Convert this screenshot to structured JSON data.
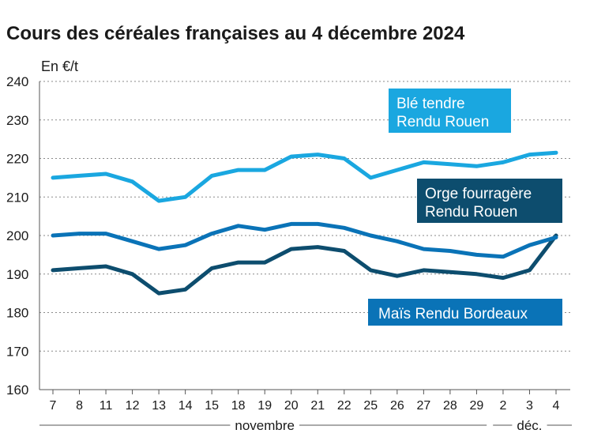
{
  "chart_data": {
    "type": "line",
    "title": "Cours des céréales françaises au 4 décembre 2024",
    "ylabel": "En €/t",
    "xlabel": "",
    "ylim": [
      160,
      240
    ],
    "yticks": [
      160,
      170,
      180,
      190,
      200,
      210,
      220,
      230,
      240
    ],
    "grid": true,
    "categories": [
      "7",
      "8",
      "11",
      "12",
      "13",
      "14",
      "15",
      "18",
      "19",
      "20",
      "21",
      "22",
      "25",
      "26",
      "27",
      "28",
      "29",
      "2",
      "3",
      "4"
    ],
    "periods": [
      {
        "label": "novembre",
        "from": 0,
        "to": 16
      },
      {
        "label": "déc.",
        "from": 17,
        "to": 19
      }
    ],
    "series": [
      {
        "name": "Blé tendre Rendu Rouen",
        "label_lines": [
          "Blé tendre",
          "Rendu Rouen"
        ],
        "color": "#1aa7e0",
        "values": [
          215,
          215.5,
          216,
          214,
          209,
          210,
          215.5,
          217,
          217,
          220.5,
          221,
          220,
          215,
          217,
          219,
          218.5,
          218,
          219,
          221,
          221.5
        ]
      },
      {
        "name": "Orge fourragère Rendu Rouen",
        "label_lines": [
          "Orge fourragère",
          "Rendu Rouen"
        ],
        "color": "#0d4d6e",
        "values": [
          191,
          191.5,
          192,
          190,
          185,
          186,
          191.5,
          193,
          193,
          196.5,
          197,
          196,
          191,
          189.5,
          191,
          190.5,
          190,
          189,
          191,
          200
        ]
      },
      {
        "name": "Maïs Rendu Bordeaux",
        "label_lines": [
          "Maïs Rendu Bordeaux"
        ],
        "color": "#0a73b7",
        "values": [
          200,
          200.5,
          200.5,
          198.5,
          196.5,
          197.5,
          200.5,
          202.5,
          201.5,
          203,
          203,
          202,
          200,
          198.5,
          196.5,
          196,
          195,
          194.5,
          197.5,
          199.5
        ]
      }
    ]
  }
}
